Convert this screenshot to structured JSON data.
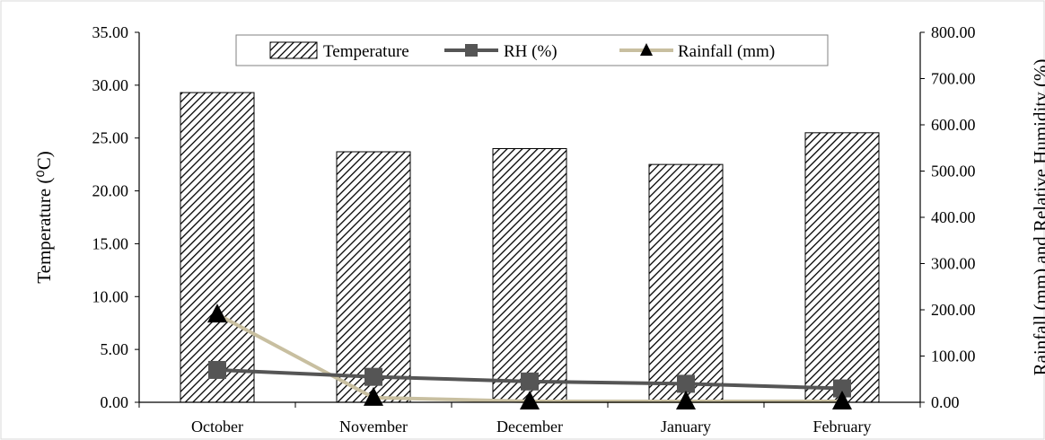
{
  "chart_data": {
    "type": "bar",
    "categories": [
      "October",
      "November",
      "December",
      "January",
      "February"
    ],
    "series": [
      {
        "name": "Temperature",
        "kind": "bar",
        "axis": "left",
        "values": [
          29.3,
          23.7,
          24.0,
          22.5,
          25.5
        ]
      },
      {
        "name": "RH (%)",
        "kind": "line",
        "axis": "right",
        "color": "#555555",
        "marker": "square",
        "values": [
          70,
          55,
          45,
          40,
          30
        ]
      },
      {
        "name": "Rainfall (mm)",
        "kind": "line",
        "axis": "right",
        "color": "#c8bfa0",
        "marker": "triangle",
        "values": [
          190,
          10,
          2,
          2,
          2
        ]
      }
    ],
    "ylabel_left": "Temperature (⁰C)",
    "ylabel_right": "Rainfall (mm) and Relative Humidity (%)",
    "ylim_left": [
      0,
      35
    ],
    "ylim_right": [
      0,
      800
    ],
    "yticks_left": [
      "0.00",
      "5.00",
      "10.00",
      "15.00",
      "20.00",
      "25.00",
      "30.00",
      "35.00"
    ],
    "yticks_right": [
      "0.00",
      "100.00",
      "200.00",
      "300.00",
      "400.00",
      "500.00",
      "600.00",
      "700.00",
      "800.00"
    ],
    "grid": false,
    "legend_position": "top"
  }
}
